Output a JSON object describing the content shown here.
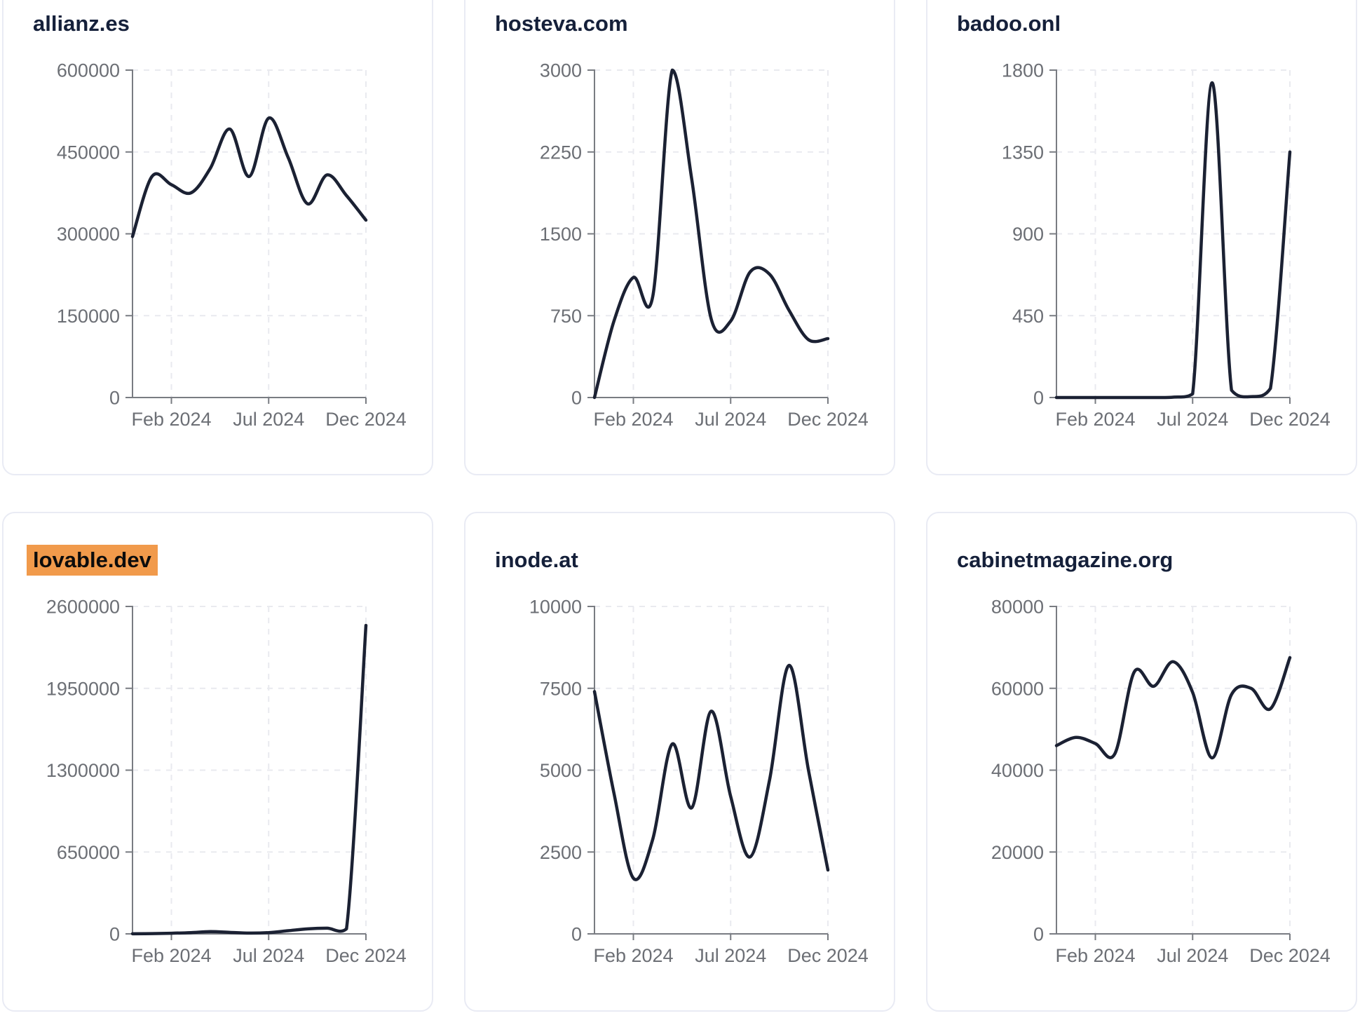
{
  "colors": {
    "line": "#1b2133",
    "title_text": "#15203a",
    "highlight_background": "#f19a4b",
    "highlight_text": "#0c0c0c",
    "axis": "#797c82",
    "tick_label": "#6c6f75",
    "gridline": "#e9eaef",
    "card_border": "#e9ebf4",
    "page_background": "#ffffff"
  },
  "chart_data": [
    {
      "type": "line",
      "title": "allianz.es",
      "highlighted": false,
      "x": [
        "Dec 2023",
        "Jan 2024",
        "Feb 2024",
        "Mar 2024",
        "Apr 2024",
        "May 2024",
        "Jun 2024",
        "Jul 2024",
        "Aug 2024",
        "Sep 2024",
        "Oct 2024",
        "Nov 2024",
        "Dec 2024"
      ],
      "values": [
        295000,
        405000,
        390000,
        375000,
        420000,
        492000,
        405000,
        512000,
        440000,
        355000,
        408000,
        370000,
        325000
      ],
      "y_ticks": [
        600000,
        450000,
        300000,
        150000,
        0
      ],
      "ylim": [
        0,
        600000
      ],
      "x_tick_labels": [
        "Feb 2024",
        "Jul 2024",
        "Dec 2024"
      ],
      "grid": true,
      "legend": false
    },
    {
      "type": "line",
      "title": "hosteva.com",
      "highlighted": false,
      "x": [
        "Dec 2023",
        "Jan 2024",
        "Feb 2024",
        "Mar 2024",
        "Apr 2024",
        "May 2024",
        "Jun 2024",
        "Jul 2024",
        "Aug 2024",
        "Sep 2024",
        "Oct 2024",
        "Nov 2024",
        "Dec 2024"
      ],
      "values": [
        0,
        700,
        1100,
        930,
        3000,
        2000,
        720,
        700,
        1150,
        1130,
        800,
        530,
        540
      ],
      "y_ticks": [
        3000,
        2250,
        1500,
        750,
        0
      ],
      "ylim": [
        0,
        3000
      ],
      "x_tick_labels": [
        "Feb 2024",
        "Jul 2024",
        "Dec 2024"
      ],
      "grid": true,
      "legend": false
    },
    {
      "type": "line",
      "title": "badoo.onl",
      "highlighted": false,
      "x": [
        "Dec 2023",
        "Jan 2024",
        "Feb 2024",
        "Mar 2024",
        "Apr 2024",
        "May 2024",
        "Jun 2024",
        "Jul 2024",
        "Aug 2024",
        "Sep 2024",
        "Oct 2024",
        "Nov 2024",
        "Dec 2024"
      ],
      "values": [
        0,
        0,
        0,
        0,
        0,
        0,
        2,
        20,
        1730,
        40,
        5,
        50,
        1350
      ],
      "y_ticks": [
        1800,
        1350,
        900,
        450,
        0
      ],
      "ylim": [
        0,
        1800
      ],
      "x_tick_labels": [
        "Feb 2024",
        "Jul 2024",
        "Dec 2024"
      ],
      "grid": true,
      "legend": false
    },
    {
      "type": "line",
      "title": "lovable.dev",
      "highlighted": true,
      "x": [
        "Dec 2023",
        "Jan 2024",
        "Feb 2024",
        "Mar 2024",
        "Apr 2024",
        "May 2024",
        "Jun 2024",
        "Jul 2024",
        "Aug 2024",
        "Sep 2024",
        "Oct 2024",
        "Nov 2024",
        "Dec 2024"
      ],
      "values": [
        1000,
        2000,
        5000,
        10000,
        18000,
        12000,
        6000,
        10000,
        25000,
        40000,
        45000,
        40000,
        2450000
      ],
      "y_ticks": [
        2600000,
        1950000,
        1300000,
        650000,
        0
      ],
      "ylim": [
        0,
        2600000
      ],
      "x_tick_labels": [
        "Feb 2024",
        "Jul 2024",
        "Dec 2024"
      ],
      "grid": true,
      "legend": false
    },
    {
      "type": "line",
      "title": "inode.at",
      "highlighted": false,
      "x": [
        "Dec 2023",
        "Jan 2024",
        "Feb 2024",
        "Mar 2024",
        "Apr 2024",
        "May 2024",
        "Jun 2024",
        "Jul 2024",
        "Aug 2024",
        "Sep 2024",
        "Oct 2024",
        "Nov 2024",
        "Dec 2024"
      ],
      "values": [
        7400,
        4300,
        1700,
        2900,
        5800,
        3850,
        6800,
        4200,
        2350,
        4700,
        8200,
        5000,
        1950
      ],
      "y_ticks": [
        10000,
        7500,
        5000,
        2500,
        0
      ],
      "ylim": [
        0,
        10000
      ],
      "x_tick_labels": [
        "Feb 2024",
        "Jul 2024",
        "Dec 2024"
      ],
      "grid": true,
      "legend": false
    },
    {
      "type": "line",
      "title": "cabinetmagazine.org",
      "highlighted": false,
      "x": [
        "Dec 2023",
        "Jan 2024",
        "Feb 2024",
        "Mar 2024",
        "Apr 2024",
        "May 2024",
        "Jun 2024",
        "Jul 2024",
        "Aug 2024",
        "Sep 2024",
        "Oct 2024",
        "Nov 2024",
        "Dec 2024"
      ],
      "values": [
        46000,
        48000,
        46500,
        44000,
        64000,
        60500,
        66500,
        59000,
        43000,
        58500,
        60000,
        55000,
        67500
      ],
      "y_ticks": [
        80000,
        60000,
        40000,
        20000,
        0
      ],
      "ylim": [
        0,
        80000
      ],
      "x_tick_labels": [
        "Feb 2024",
        "Jul 2024",
        "Dec 2024"
      ],
      "grid": true,
      "legend": false
    }
  ]
}
